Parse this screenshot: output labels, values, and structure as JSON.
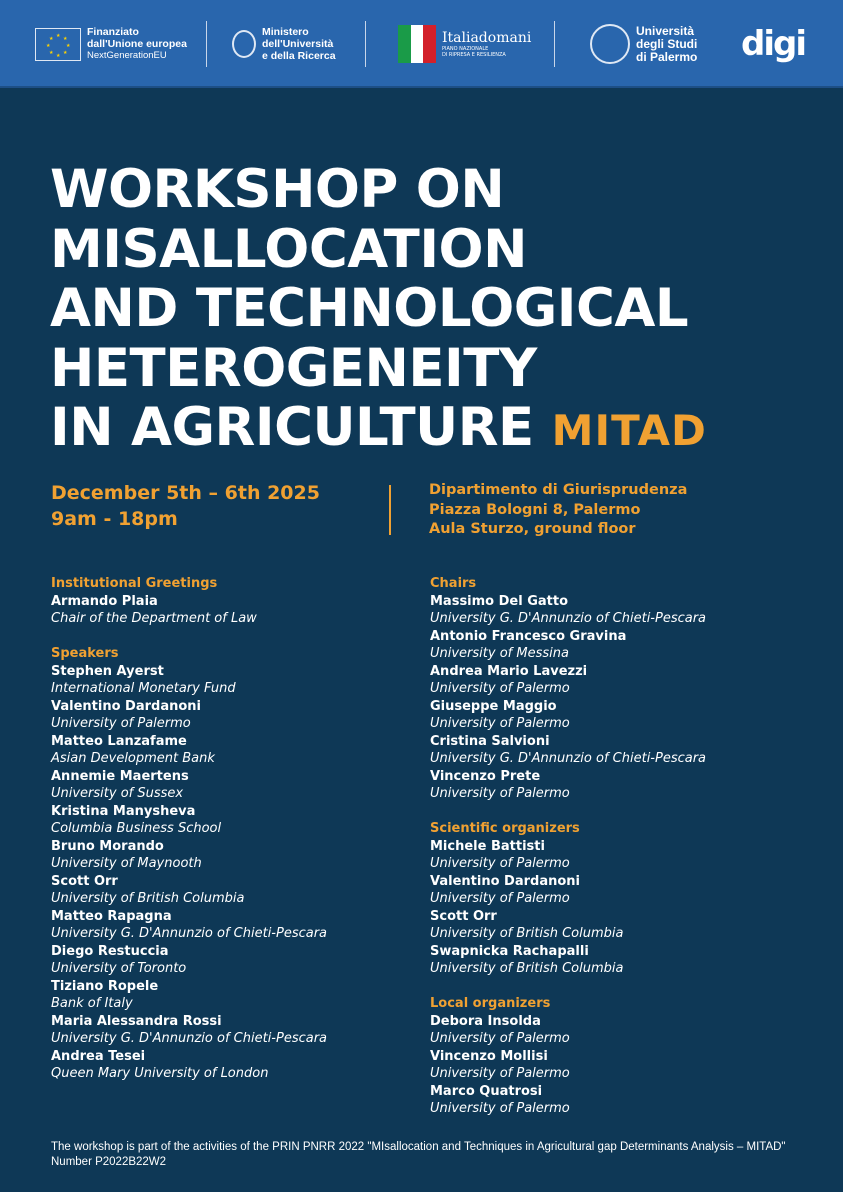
{
  "header": {
    "eu": {
      "line1": "Finanziato",
      "line2": "dall'Unione europea",
      "line3": "NextGenerationEU"
    },
    "ministero": {
      "line1": "Ministero",
      "line2": "dell'Università",
      "line3": "e della Ricerca"
    },
    "italiadomani": {
      "name": "Italiadomani",
      "sub1": "PIANO NAZIONALE",
      "sub2": "DI RIPRESA E RESILIENZA"
    },
    "unipa": {
      "line1": "Università",
      "line2": "degli Studi",
      "line3": "di Palermo"
    },
    "digi": {
      "name": "digi"
    }
  },
  "title": {
    "lines": [
      "WORKSHOP ON",
      "MISALLOCATION",
      "AND TECHNOLOGICAL",
      "HETEROGENEITY",
      "IN AGRICULTURE"
    ],
    "acronym": "MITAD"
  },
  "date": {
    "days": "December 5th – 6th 2025",
    "time": "9am - 18pm"
  },
  "venue": {
    "line1": "Dipartimento di Giurisprudenza",
    "line2": "Piazza Bologni 8, Palermo",
    "line3": "Aula Sturzo, ground floor"
  },
  "left": [
    {
      "heading": "Institutional Greetings",
      "people": [
        {
          "name": "Armando Plaia",
          "aff": "Chair of the Department of Law"
        }
      ]
    },
    {
      "heading": "Speakers",
      "people": [
        {
          "name": "Stephen Ayerst",
          "aff": "International Monetary Fund"
        },
        {
          "name": "Valentino Dardanoni",
          "aff": "University of Palermo"
        },
        {
          "name": "Matteo Lanzafame",
          "aff": "Asian Development Bank"
        },
        {
          "name": "Annemie Maertens",
          "aff": "University of Sussex"
        },
        {
          "name": "Kristina Manysheva",
          "aff": "Columbia Business School"
        },
        {
          "name": "Bruno Morando",
          "aff": "University of Maynooth"
        },
        {
          "name": "Scott Orr",
          "aff": "University of British Columbia"
        },
        {
          "name": "Matteo Rapagna",
          "aff": "University G. D'Annunzio of Chieti-Pescara"
        },
        {
          "name": "Diego Restuccia",
          "aff": "University of Toronto"
        },
        {
          "name": "Tiziano Ropele",
          "aff": "Bank of Italy"
        },
        {
          "name": "Maria Alessandra Rossi",
          "aff": "University G. D'Annunzio of Chieti-Pescara"
        },
        {
          "name": "Andrea Tesei",
          "aff": "Queen Mary University of London"
        }
      ]
    }
  ],
  "right": [
    {
      "heading": "Chairs",
      "people": [
        {
          "name": "Massimo Del Gatto",
          "aff": "University G. D'Annunzio of Chieti-Pescara"
        },
        {
          "name": "Antonio Francesco Gravina",
          "aff": "University of Messina"
        },
        {
          "name": "Andrea Mario Lavezzi",
          "aff": "University of Palermo"
        },
        {
          "name": "Giuseppe Maggio",
          "aff": "University of Palermo"
        },
        {
          "name": "Cristina Salvioni",
          "aff": "University G. D'Annunzio of Chieti-Pescara"
        },
        {
          "name": "Vincenzo Prete",
          "aff": "University of Palermo"
        }
      ]
    },
    {
      "heading": "Scientific organizers",
      "people": [
        {
          "name": "Michele Battisti",
          "aff": "University of Palermo"
        },
        {
          "name": "Valentino Dardanoni",
          "aff": "University of Palermo"
        },
        {
          "name": "Scott Orr",
          "aff": "University of British Columbia"
        },
        {
          "name": "Swapnicka Rachapalli",
          "aff": "University of British Columbia"
        }
      ]
    },
    {
      "heading": "Local organizers",
      "people": [
        {
          "name": "Debora Insolda",
          "aff": "University of Palermo"
        },
        {
          "name": "Vincenzo Mollisi",
          "aff": "University of Palermo"
        },
        {
          "name": "Marco Quatrosi",
          "aff": "University of Palermo"
        }
      ]
    }
  ],
  "footer": "The workshop is part of the activities of the PRIN PNRR 2022 \"MIsallocation and Techniques in Agricultural gap Determinants Analysis – MITAD\" Number P2022B22W2",
  "colors": {
    "header": "#2966ad",
    "background": "#0e3856",
    "accent": "#f0a132"
  }
}
